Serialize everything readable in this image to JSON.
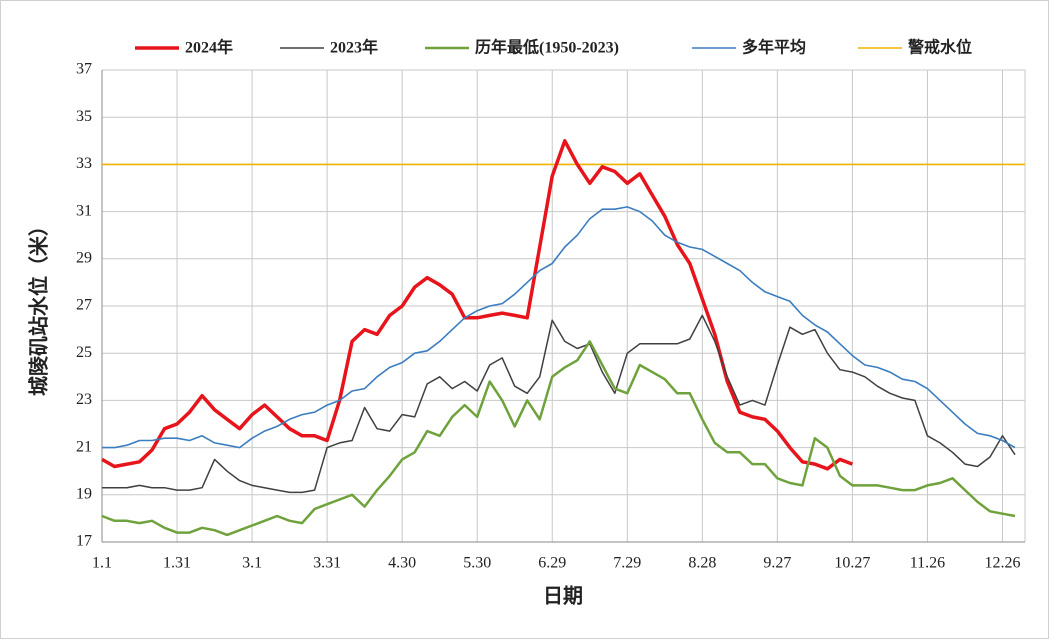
{
  "chart_data": {
    "type": "line",
    "y_label": "城陵矶站水位（米）",
    "x_label": "日期",
    "xlim": [
      1,
      370
    ],
    "xticks": [
      {
        "value": 1,
        "label": "1.1"
      },
      {
        "value": 31,
        "label": "1.31"
      },
      {
        "value": 61,
        "label": "3.1"
      },
      {
        "value": 91,
        "label": "3.31"
      },
      {
        "value": 121,
        "label": "4.30"
      },
      {
        "value": 151,
        "label": "5.30"
      },
      {
        "value": 181,
        "label": "6.29"
      },
      {
        "value": 211,
        "label": "7.29"
      },
      {
        "value": 241,
        "label": "8.28"
      },
      {
        "value": 271,
        "label": "9.27"
      },
      {
        "value": 301,
        "label": "10.27"
      },
      {
        "value": 331,
        "label": "11.26"
      },
      {
        "value": 361,
        "label": "12.26"
      }
    ],
    "ylim": [
      17,
      37
    ],
    "yticks": [
      17,
      19,
      21,
      23,
      25,
      27,
      29,
      31,
      33,
      35,
      37
    ],
    "grid": true,
    "legend": "top",
    "x": [
      1,
      6,
      11,
      16,
      21,
      26,
      31,
      36,
      41,
      46,
      51,
      56,
      61,
      66,
      71,
      76,
      81,
      86,
      91,
      96,
      101,
      106,
      111,
      116,
      121,
      126,
      131,
      136,
      141,
      146,
      151,
      156,
      161,
      166,
      171,
      176,
      181,
      186,
      191,
      196,
      201,
      206,
      211,
      216,
      221,
      226,
      231,
      236,
      241,
      246,
      251,
      256,
      261,
      266,
      271,
      276,
      281,
      286,
      291,
      296,
      301,
      306,
      311,
      316,
      321,
      326,
      331,
      336,
      341,
      346,
      351,
      356,
      361,
      366
    ],
    "series": [
      {
        "name": "2024年",
        "color": "#e8141b",
        "width": 3.5,
        "values": [
          20.5,
          20.2,
          20.3,
          20.4,
          20.9,
          21.8,
          22.0,
          22.5,
          23.2,
          22.6,
          22.2,
          21.8,
          22.4,
          22.8,
          22.3,
          21.8,
          21.5,
          21.5,
          21.3,
          23.0,
          25.5,
          26.0,
          25.8,
          26.6,
          27.0,
          27.8,
          28.2,
          27.9,
          27.5,
          26.5,
          26.5,
          26.6,
          26.7,
          26.6,
          26.5,
          29.5,
          32.5,
          34.0,
          33.0,
          32.2,
          32.9,
          32.7,
          32.2,
          32.6,
          31.7,
          30.8,
          29.6,
          28.8,
          27.3,
          25.8,
          23.8,
          22.5,
          22.3,
          22.2,
          21.7,
          21.0,
          20.4,
          20.3,
          20.1,
          20.5,
          20.3,
          null,
          null,
          null,
          null,
          null,
          null,
          null,
          null,
          null,
          null,
          null,
          null,
          null
        ]
      },
      {
        "name": "2023年",
        "color": "#404040",
        "width": 1.5,
        "values": [
          19.3,
          19.3,
          19.3,
          19.4,
          19.3,
          19.3,
          19.2,
          19.2,
          19.3,
          20.5,
          20.0,
          19.6,
          19.4,
          19.3,
          19.2,
          19.1,
          19.1,
          19.2,
          21.0,
          21.2,
          21.3,
          22.7,
          21.8,
          21.7,
          22.4,
          22.3,
          23.7,
          24.0,
          23.5,
          23.8,
          23.4,
          24.5,
          24.8,
          23.6,
          23.3,
          24.0,
          26.4,
          25.5,
          25.2,
          25.4,
          24.2,
          23.3,
          25.0,
          25.4,
          25.4,
          25.4,
          25.4,
          25.6,
          26.6,
          25.5,
          24.0,
          22.8,
          23.0,
          22.8,
          24.5,
          26.1,
          25.8,
          26.0,
          25.0,
          24.3,
          24.2,
          24.0,
          23.6,
          23.3,
          23.1,
          23.0,
          21.5,
          21.2,
          20.8,
          20.3,
          20.2,
          20.6,
          21.5,
          20.7
        ]
      },
      {
        "name": "历年最低(1950-2023)",
        "color": "#6fa23c",
        "width": 2.5,
        "values": [
          18.1,
          17.9,
          17.9,
          17.8,
          17.9,
          17.6,
          17.4,
          17.4,
          17.6,
          17.5,
          17.3,
          17.5,
          17.7,
          17.9,
          18.1,
          17.9,
          17.8,
          18.4,
          18.6,
          18.8,
          19.0,
          18.5,
          19.2,
          19.8,
          20.5,
          20.8,
          21.7,
          21.5,
          22.3,
          22.8,
          22.3,
          23.8,
          23.0,
          21.9,
          23.0,
          22.2,
          24.0,
          24.4,
          24.7,
          25.5,
          24.5,
          23.5,
          23.3,
          24.5,
          24.2,
          23.9,
          23.3,
          23.3,
          22.2,
          21.2,
          20.8,
          20.8,
          20.3,
          20.3,
          19.7,
          19.5,
          19.4,
          21.4,
          21.0,
          19.8,
          19.4,
          19.4,
          19.4,
          19.3,
          19.2,
          19.2,
          19.4,
          19.5,
          19.7,
          19.2,
          18.7,
          18.3,
          18.2,
          18.1
        ]
      },
      {
        "name": "多年平均",
        "color": "#3a7dc0",
        "width": 1.6,
        "values": [
          21.0,
          21.0,
          21.1,
          21.3,
          21.3,
          21.4,
          21.4,
          21.3,
          21.5,
          21.2,
          21.1,
          21.0,
          21.4,
          21.7,
          21.9,
          22.2,
          22.4,
          22.5,
          22.8,
          23.0,
          23.4,
          23.5,
          24.0,
          24.4,
          24.6,
          25.0,
          25.1,
          25.5,
          26.0,
          26.5,
          26.8,
          27.0,
          27.1,
          27.5,
          28.0,
          28.5,
          28.8,
          29.5,
          30.0,
          30.7,
          31.1,
          31.1,
          31.2,
          31.0,
          30.6,
          30.0,
          29.7,
          29.5,
          29.4,
          29.1,
          28.8,
          28.5,
          28.0,
          27.6,
          27.4,
          27.2,
          26.6,
          26.2,
          25.9,
          25.4,
          24.9,
          24.5,
          24.4,
          24.2,
          23.9,
          23.8,
          23.5,
          23.0,
          22.5,
          22.0,
          21.6,
          21.5,
          21.3,
          21.0
        ]
      }
    ],
    "reference_line": {
      "name": "警戒水位",
      "value": 33,
      "color": "#f0b400",
      "width": 1.6
    }
  }
}
